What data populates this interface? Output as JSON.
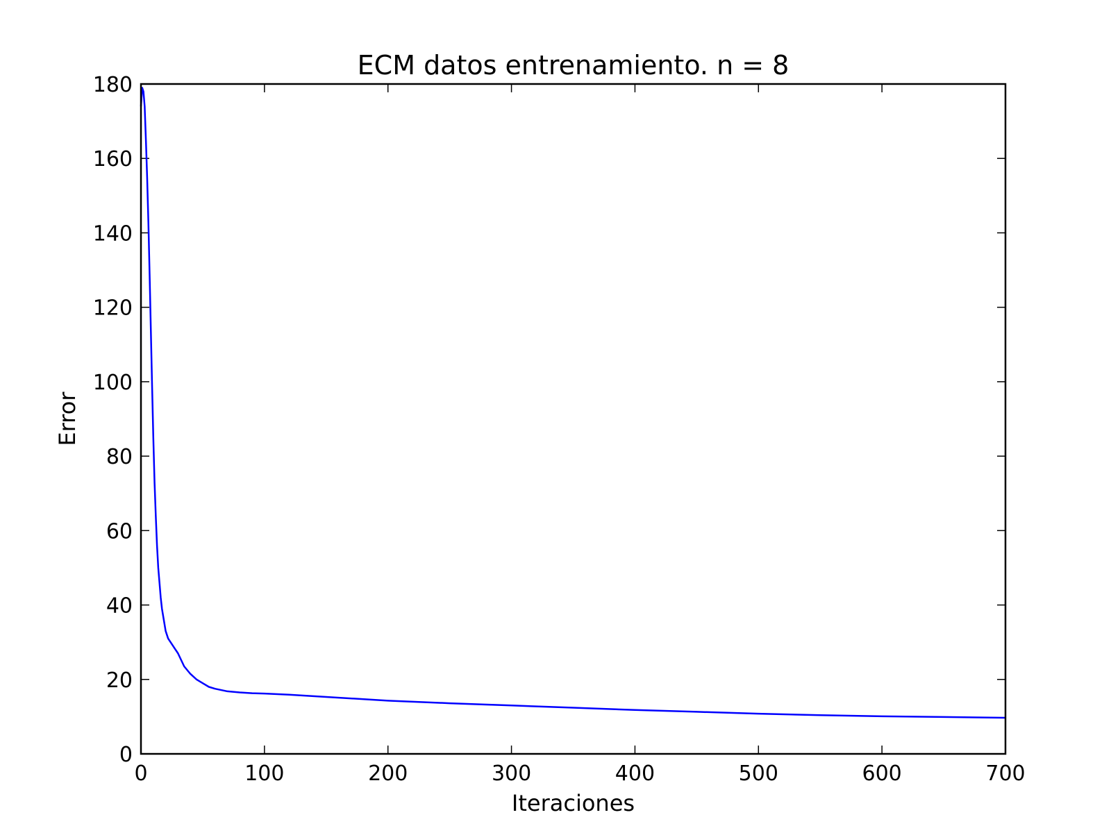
{
  "chart_data": {
    "type": "line",
    "title": "ECM datos entrenamiento. n = 8",
    "xlabel": "Iteraciones",
    "ylabel": "Error",
    "xlim": [
      0,
      700
    ],
    "ylim": [
      0,
      180
    ],
    "x_ticks": [
      0,
      100,
      200,
      300,
      400,
      500,
      600,
      700
    ],
    "y_ticks": [
      0,
      20,
      40,
      60,
      80,
      100,
      120,
      140,
      160,
      180
    ],
    "x_tick_labels": [
      "0",
      "100",
      "200",
      "300",
      "400",
      "500",
      "600",
      "700"
    ],
    "y_tick_labels": [
      "0",
      "20",
      "40",
      "60",
      "80",
      "100",
      "120",
      "140",
      "160",
      "180"
    ],
    "grid": false,
    "legend": "none",
    "series": [
      {
        "color": "#0000ff",
        "x": [
          0,
          1,
          2,
          3,
          4,
          5,
          6,
          7,
          8,
          9,
          10,
          11,
          12,
          13,
          14,
          15,
          16,
          17,
          18,
          19,
          20,
          22,
          24,
          26,
          28,
          30,
          35,
          40,
          45,
          50,
          55,
          60,
          70,
          80,
          90,
          100,
          120,
          150,
          200,
          250,
          300,
          350,
          400,
          450,
          500,
          550,
          600,
          650,
          700
        ],
        "y": [
          174,
          179,
          178,
          174,
          165,
          155,
          143,
          129,
          114,
          99,
          85,
          73,
          64,
          56,
          50,
          46,
          42,
          39,
          37,
          35,
          33,
          31,
          30,
          29,
          28,
          27,
          23.5,
          21.5,
          20,
          19,
          18,
          17.5,
          16.8,
          16.5,
          16.3,
          16.2,
          15.9,
          15.3,
          14.3,
          13.6,
          13.0,
          12.4,
          11.8,
          11.3,
          10.8,
          10.4,
          10.1,
          9.9,
          9.7
        ]
      }
    ]
  }
}
